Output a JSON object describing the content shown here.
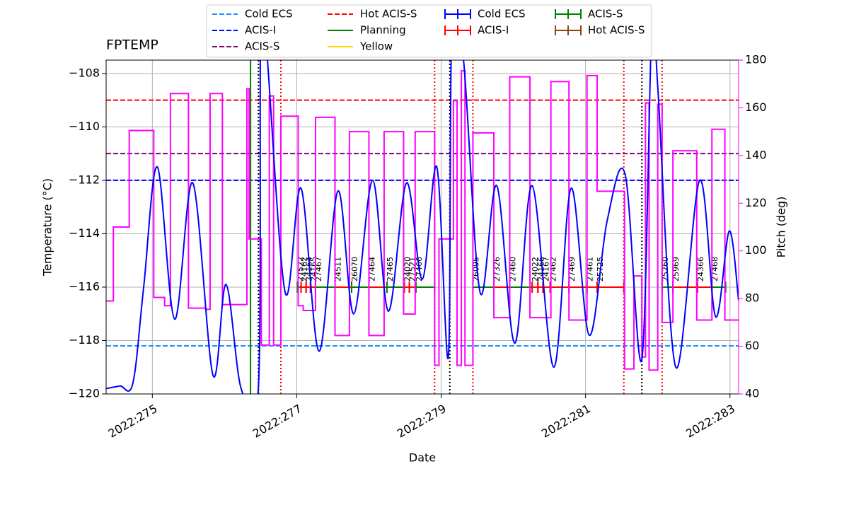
{
  "chart_data": {
    "type": "line",
    "title": "FPTEMP",
    "x_label": "Date",
    "y_label": "Temperature (°C)",
    "y2_label": "Pitch (deg)",
    "xlim": [
      274.36,
      283.12
    ],
    "xticks": [
      {
        "value": 275,
        "label": "2022:275"
      },
      {
        "value": 277,
        "label": "2022:277"
      },
      {
        "value": 279,
        "label": "2022:279"
      },
      {
        "value": 281,
        "label": "2022:281"
      },
      {
        "value": 283,
        "label": "2022:283"
      }
    ],
    "ylim": [
      -120,
      -107.5
    ],
    "yticks": [
      {
        "value": -120,
        "label": "−120"
      },
      {
        "value": -118,
        "label": "−118"
      },
      {
        "value": -116,
        "label": "−116"
      },
      {
        "value": -114,
        "label": "−114"
      },
      {
        "value": -112,
        "label": "−112"
      },
      {
        "value": -110,
        "label": "−110"
      },
      {
        "value": -108,
        "label": "−108"
      }
    ],
    "y2lim": [
      40,
      180
    ],
    "y2ticks": [
      40,
      60,
      80,
      100,
      120,
      140,
      160,
      180
    ],
    "y2_color": "#ff00ff",
    "grid": true,
    "series": [
      {
        "color": "#0000ff",
        "x": [
          274.36,
          274.55,
          274.73,
          274.88,
          275.07,
          275.31,
          275.56,
          275.84,
          276.02,
          276.23,
          276.47,
          276.5,
          276.58,
          276.84,
          277.06,
          277.31,
          277.57,
          277.79,
          278.05,
          278.27,
          278.52,
          278.74,
          278.94,
          279.1,
          279.15,
          279.31,
          279.54,
          279.77,
          280.02,
          280.26,
          280.56,
          280.8,
          281.05,
          281.3,
          281.55,
          281.78,
          281.92,
          282.0,
          282.25,
          282.58,
          282.8,
          282.99,
          283.12
        ],
        "values": [
          -119.8,
          -119.7,
          -119.6,
          -116.0,
          -111.5,
          -117.2,
          -112.1,
          -119.3,
          -115.9,
          -119.8,
          -119.7,
          -106,
          -107,
          -116.2,
          -112.3,
          -118.4,
          -112.4,
          -117.0,
          -112.0,
          -116.9,
          -112.1,
          -115.7,
          -111.5,
          -118.6,
          -106,
          -107.5,
          -116.2,
          -112.2,
          -118.1,
          -112.2,
          -119.0,
          -112.3,
          -117.8,
          -113.5,
          -111.8,
          -118.7,
          -106,
          -108.5,
          -119.0,
          -112.0,
          -117.1,
          -113.9,
          -116.5
        ]
      },
      {
        "color": "#ff00ff",
        "axis": "y2",
        "step": true,
        "x": [
          274.36,
          274.46,
          274.68,
          275.02,
          275.17,
          275.25,
          275.5,
          275.74,
          275.8,
          275.97,
          276.31,
          276.34,
          276.51,
          276.62,
          276.68,
          276.78,
          277.02,
          277.09,
          277.26,
          277.53,
          277.73,
          278.0,
          278.21,
          278.48,
          278.64,
          278.91,
          278.97,
          279.17,
          279.22,
          279.28,
          279.33,
          279.44,
          279.73,
          279.95,
          280.23,
          280.52,
          280.77,
          281.02,
          281.16,
          281.54,
          281.67,
          281.78,
          281.83,
          281.88,
          282.0,
          282.06,
          282.21,
          282.54,
          282.75,
          282.93,
          283.12
        ],
        "values": [
          79,
          110,
          150.5,
          80.5,
          77,
          166,
          76,
          75.5,
          166,
          77.5,
          168,
          105,
          60.5,
          165,
          60.5,
          156.5,
          77,
          75,
          156,
          64.5,
          150,
          64.5,
          150,
          73.5,
          150,
          52,
          105,
          163,
          52,
          175.5,
          52,
          149.5,
          72,
          173,
          72,
          171,
          71,
          173.5,
          125,
          50.5,
          89.5,
          55.5,
          162,
          50,
          161.5,
          70,
          142,
          71,
          151,
          71,
          71
        ]
      }
    ],
    "limits": [
      {
        "name": "Cold ECS",
        "color": "#1e90ff",
        "value": -118.2
      },
      {
        "name": "ACIS-I",
        "color": "#0000ff",
        "value": -112
      },
      {
        "name": "ACIS-S",
        "color": "#800080",
        "value": -111
      },
      {
        "name": "Hot ACIS-S",
        "color": "#ff0000",
        "value": -109
      }
    ],
    "markers": [
      {
        "name": "Planning",
        "color": "#008000",
        "x": [
          276.36
        ]
      },
      {
        "name": "Yellow",
        "color": "#ffd700",
        "x": []
      }
    ],
    "vlines": [
      {
        "x": 276.78,
        "color": "#ff0000"
      },
      {
        "x": 278.91,
        "color": "#ff0000"
      },
      {
        "x": 279.44,
        "color": "#ff0000"
      },
      {
        "x": 281.53,
        "color": "#ff0000"
      },
      {
        "x": 282.06,
        "color": "#ff0000"
      },
      {
        "x": 276.47,
        "color": "#000000"
      },
      {
        "x": 279.12,
        "color": "#000000"
      },
      {
        "x": 281.78,
        "color": "#000000"
      }
    ],
    "modes": [
      {
        "name": "Cold ECS",
        "color": "#0000ff"
      },
      {
        "name": "ACIS-I",
        "color": "#ff0000"
      },
      {
        "name": "ACIS-S",
        "color": "#008000"
      },
      {
        "name": "Hot ACIS-S",
        "color": "#8b4513"
      }
    ],
    "obsids": [
      {
        "label": "27522",
        "color": "#008000",
        "start": 277.01,
        "stop": 277.06
      },
      {
        "label": "24162",
        "color": "#ff0000",
        "start": 277.06,
        "stop": 277.13
      },
      {
        "label": "24164",
        "color": "#ff0000",
        "start": 277.13,
        "stop": 277.19
      },
      {
        "label": "24165",
        "color": "#ff0000",
        "start": 277.19,
        "stop": 277.26
      },
      {
        "label": "27467",
        "color": "#008000",
        "start": 277.26,
        "stop": 277.53
      },
      {
        "label": "24511",
        "color": "#ff0000",
        "start": 277.53,
        "stop": 277.76
      },
      {
        "label": "26070",
        "color": "#008000",
        "start": 277.76,
        "stop": 278.0
      },
      {
        "label": "27464",
        "color": "#ff0000",
        "start": 278.0,
        "stop": 278.25
      },
      {
        "label": "27465",
        "color": "#008000",
        "start": 278.25,
        "stop": 278.49
      },
      {
        "label": "24020",
        "color": "#ff0000",
        "start": 278.49,
        "stop": 278.56
      },
      {
        "label": "27521",
        "color": "#ff0000",
        "start": 278.56,
        "stop": 278.65
      },
      {
        "label": "27466",
        "color": "#008000",
        "start": 278.65,
        "stop": 278.91
      },
      {
        "label": "26095",
        "color": "#008000",
        "start": 279.44,
        "stop": 279.73
      },
      {
        "label": "27326",
        "color": "#ff0000",
        "start": 279.73,
        "stop": 279.95
      },
      {
        "label": "27460",
        "color": "#008000",
        "start": 279.95,
        "stop": 280.26
      },
      {
        "label": "24022",
        "color": "#ff0000",
        "start": 280.26,
        "stop": 280.34
      },
      {
        "label": "24166",
        "color": "#ff0000",
        "start": 280.34,
        "stop": 280.41
      },
      {
        "label": "24167",
        "color": "#ff0000",
        "start": 280.41,
        "stop": 280.51
      },
      {
        "label": "27462",
        "color": "#ff0000",
        "start": 280.51,
        "stop": 280.77
      },
      {
        "label": "27469",
        "color": "#ff0000",
        "start": 280.77,
        "stop": 281.02
      },
      {
        "label": "27461",
        "color": "#ff0000",
        "start": 281.02,
        "stop": 281.16
      },
      {
        "label": "25725",
        "color": "#ff0000",
        "start": 281.16,
        "stop": 281.53
      },
      {
        "label": "25260",
        "color": "#008000",
        "start": 282.06,
        "stop": 282.21
      },
      {
        "label": "25969",
        "color": "#ff0000",
        "start": 282.21,
        "stop": 282.55
      },
      {
        "label": "24366",
        "color": "#ff0000",
        "start": 282.55,
        "stop": 282.75
      },
      {
        "label": "27468",
        "color": "#008000",
        "start": 282.75,
        "stop": 282.94
      }
    ]
  }
}
